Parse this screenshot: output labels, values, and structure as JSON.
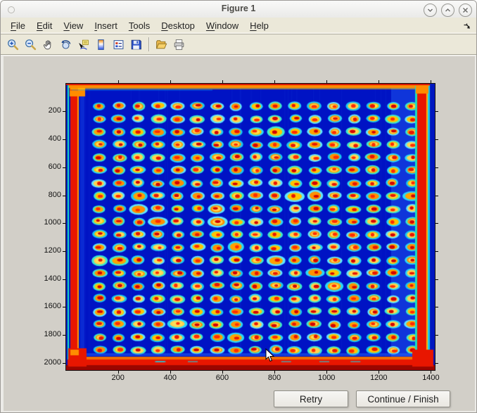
{
  "window": {
    "title": "Figure 1",
    "controls": [
      {
        "name": "window-menu",
        "glyph": "circle"
      },
      {
        "name": "shade",
        "glyph": "chevron-down"
      },
      {
        "name": "maximize",
        "glyph": "chevron-up"
      },
      {
        "name": "close",
        "glyph": "x"
      }
    ]
  },
  "menubar": {
    "items": [
      {
        "label": "File",
        "mn": "F",
        "rest": "ile"
      },
      {
        "label": "Edit",
        "mn": "E",
        "rest": "dit"
      },
      {
        "label": "View",
        "mn": "V",
        "rest": "iew"
      },
      {
        "label": "Insert",
        "mn": "I",
        "rest": "nsert"
      },
      {
        "label": "Tools",
        "mn": "T",
        "rest": "ools"
      },
      {
        "label": "Desktop",
        "mn": "D",
        "rest": "esktop"
      },
      {
        "label": "Window",
        "mn": "W",
        "rest": "indow"
      },
      {
        "label": "Help",
        "mn": "H",
        "rest": "elp"
      }
    ],
    "dock_icon": "dock-figure-arrow"
  },
  "toolbar": {
    "icons": [
      "zoom-in",
      "zoom-out",
      "pan",
      "rotate-3d",
      "data-cursor",
      "insert-colorbar",
      "insert-legend",
      "save-figure",
      "open-file",
      "print-figure"
    ],
    "separator_after": "save-figure"
  },
  "dialog_buttons": {
    "retry": "Retry",
    "continue_finish": "Continue / Finish"
  },
  "ui_colors": {
    "chrome_beige": "#ebe8d9",
    "titlebar_top": "#f9f9f8",
    "titlebar_bottom": "#eaeae8",
    "figure_background": "#d2cfc8",
    "window_frame": "#ecebe7"
  },
  "chart_data": {
    "type": "heatmap",
    "description": "Microarray plate scan rendered with jet colormap: regular 20-row x 17-column grid of assay spots (cyan halo, orange/yellow ring, red core) on deep blue background, with saturated red/orange bands along the plate edges",
    "x_range": [
      1,
      1415
    ],
    "y_range": [
      1,
      2052
    ],
    "x_ticks": [
      200,
      400,
      600,
      800,
      1000,
      1200,
      1400
    ],
    "y_ticks": [
      200,
      400,
      600,
      800,
      1000,
      1200,
      1400,
      1600,
      1800,
      2000
    ],
    "grid": {
      "rows": 20,
      "cols": 17,
      "x_start": 129,
      "x_step": 75,
      "y_start": 161,
      "y_step": 92
    },
    "colors": {
      "background": "#0013c4",
      "spot_halo": [
        "#29d8f8",
        "#3ce9cf",
        "#5fe6ff",
        "#18c8f0"
      ],
      "spot_ring": [
        "#ffc400",
        "#ffa200",
        "#ffd24d",
        "#ff9000"
      ],
      "spot_core": [
        "#e81600",
        "#d40000",
        "#ff2c00"
      ],
      "edge_red": "#e81600",
      "edge_orange": "#ff8c00",
      "edge_dark_red": "#9a0600",
      "edge_cyan": "#19e0c0"
    }
  }
}
